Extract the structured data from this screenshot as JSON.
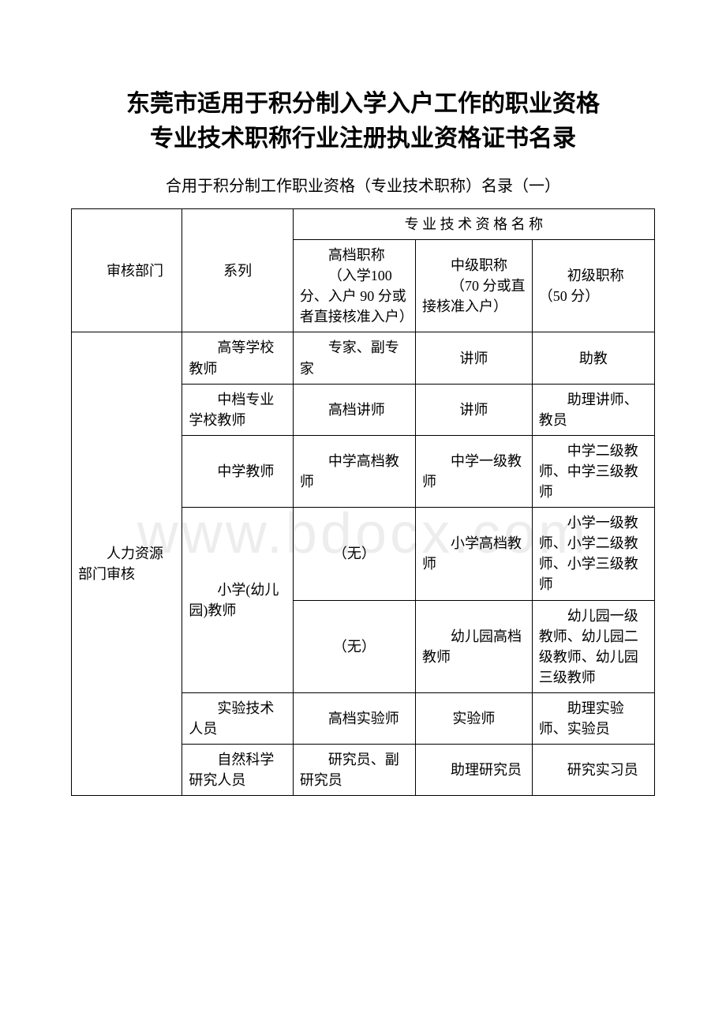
{
  "title_line1": "东莞市适用于积分制入学入户工作的职业资格",
  "title_line2": "专业技术职称行业注册执业资格证书名录",
  "subtitle": "合用于积分制工作职业资格（专业技术职称）名录（一）",
  "watermark": "www.bdocx.com",
  "header": {
    "dept": "审核部门",
    "series": "系列",
    "spec_title": "专 业 技 术 资 格 名 称",
    "high_label": "高档职称",
    "high_detail": "（入学100 分、入户 90 分或者直接核准入户）",
    "mid_label": "中级职称",
    "mid_detail": "（70 分或直接核准入户）",
    "low_label": "初级职称（50 分）"
  },
  "dept_name": "人力资源部门审核",
  "rows": [
    {
      "series": "高等学校教师",
      "high": "专家、副专家",
      "mid": "讲师",
      "low": "助教"
    },
    {
      "series": "中档专业学校教师",
      "high": "高档讲师",
      "mid": "讲师",
      "low": "助理讲师、教员"
    },
    {
      "series": "中学教师",
      "high": "中学高档教师",
      "mid": "中学一级教师",
      "low": "中学二级教师、中学三级教师"
    },
    {
      "series": "小学(幼儿园)教师",
      "high": "（无）",
      "mid": "小学高档教师",
      "low": "小学一级教师、小学二级教师、小学三级教师"
    },
    {
      "series": "",
      "high": "（无）",
      "mid": "幼儿园高档教师",
      "low": "幼儿园一级教师、幼儿园二级教师、幼儿园三级教师"
    },
    {
      "series": "实验技术人员",
      "high": "高档实验师",
      "mid": "实验师",
      "low": "助理实验师、实验员"
    },
    {
      "series": "自然科学研究人员",
      "high": "研究员、副研究员",
      "mid": "助理研究员",
      "low": "研究实习员"
    }
  ],
  "colors": {
    "text": "#000000",
    "border": "#000000",
    "background": "#ffffff",
    "watermark": "rgba(0,0,0,0.07)"
  },
  "typography": {
    "title_fontsize": 30,
    "subtitle_fontsize": 20,
    "cell_fontsize": 18,
    "watermark_fontsize": 72
  }
}
